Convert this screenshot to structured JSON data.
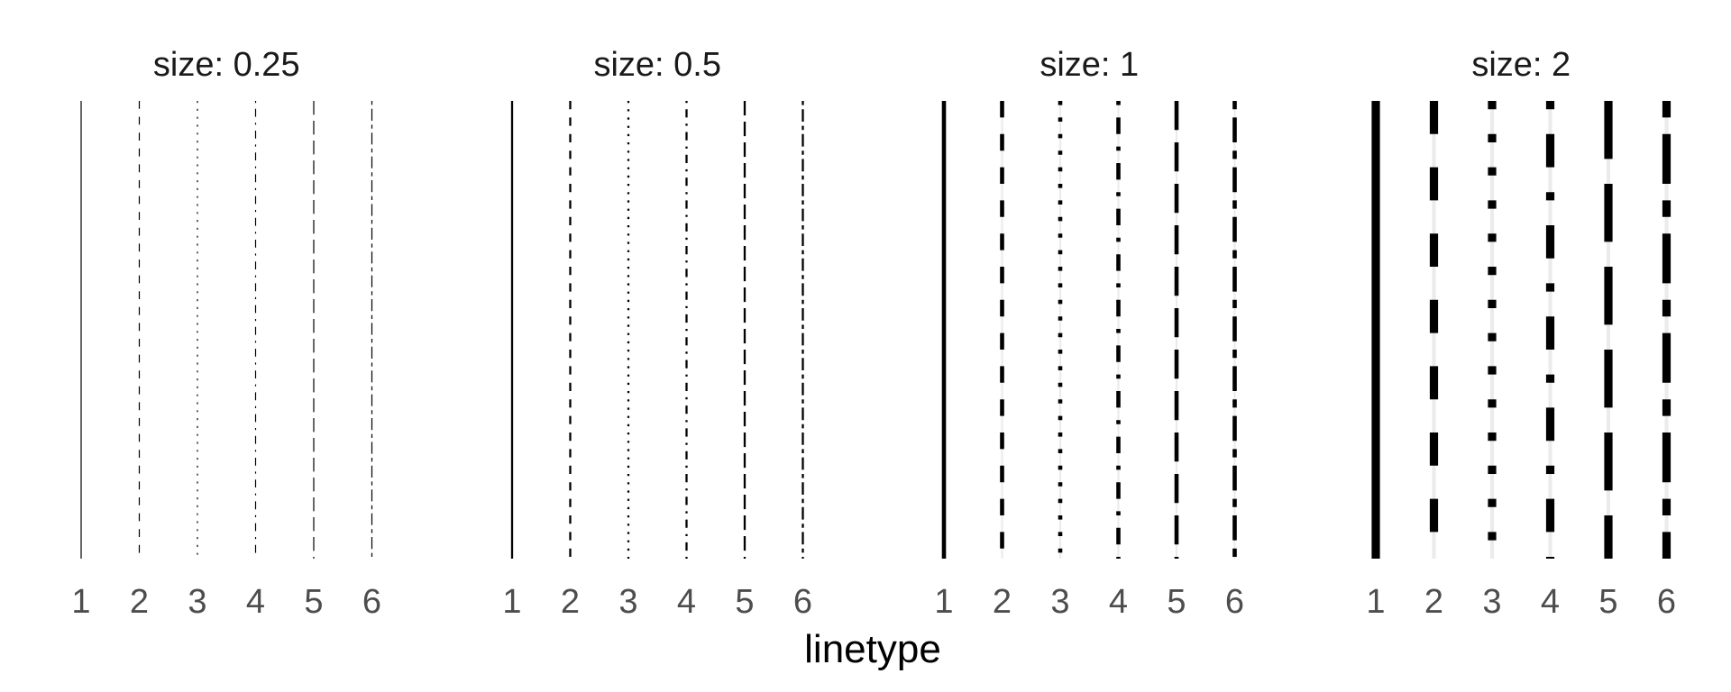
{
  "chart_data": {
    "type": "line",
    "xlabel": "linetype",
    "categories": [
      "1",
      "2",
      "3",
      "4",
      "5",
      "6"
    ],
    "panels": [
      {
        "title": "size: 0.25",
        "size": 0.25
      },
      {
        "title": "size: 0.5",
        "size": 0.5
      },
      {
        "title": "size: 1",
        "size": 1
      },
      {
        "title": "size: 2",
        "size": 2
      }
    ],
    "linetypes": [
      "solid",
      "dashed",
      "dotted",
      "dotdash",
      "longdash",
      "twodash"
    ],
    "colors": {
      "line": "#000000",
      "tick_label": "#4d4d4d",
      "title": "#1a1a1a",
      "shadow": "#ebebeb"
    }
  }
}
